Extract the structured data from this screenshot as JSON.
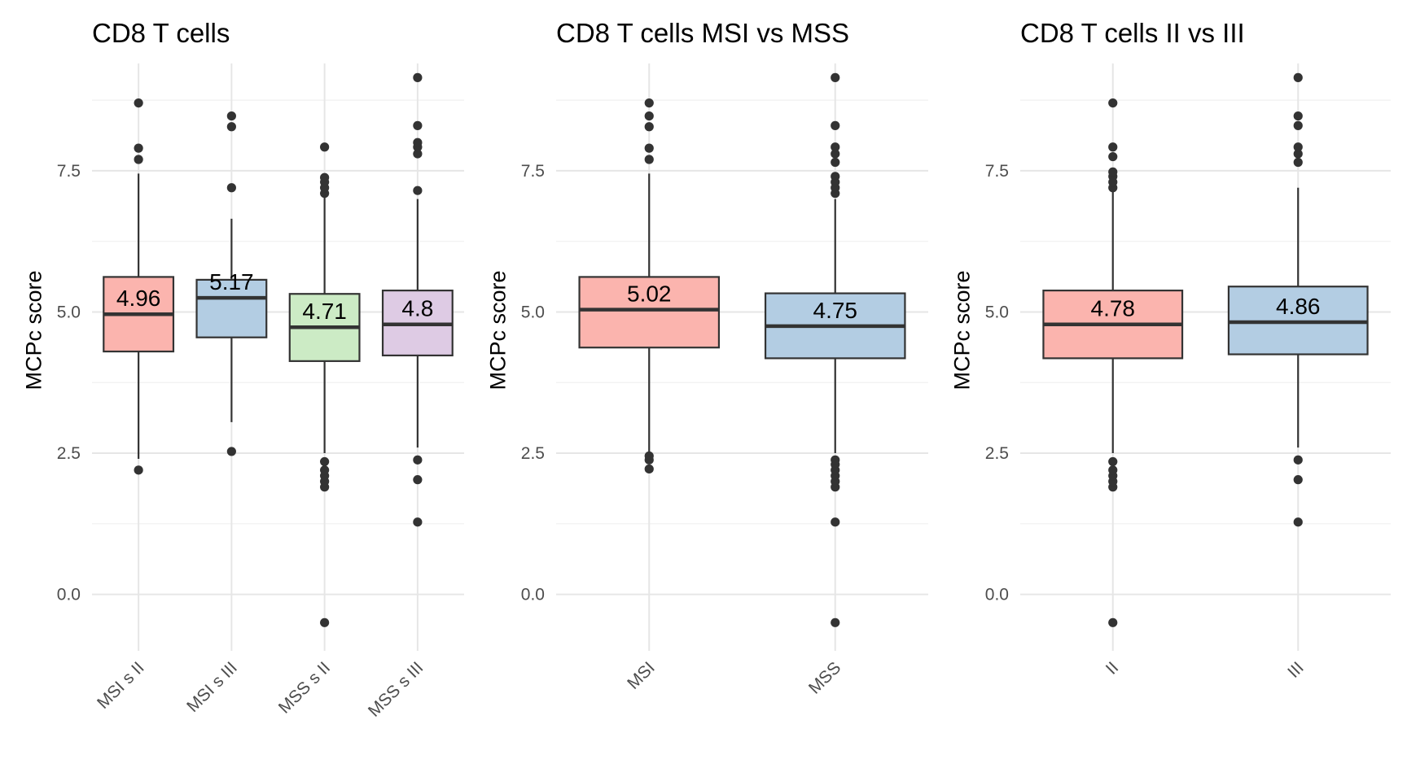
{
  "chart_data": [
    {
      "type": "box",
      "title": "CD8 T cells",
      "xlabel": "",
      "ylabel": "MCPc score",
      "ylim": [
        -1.0,
        9.4
      ],
      "yticks": [
        "0.0",
        "2.5",
        "5.0",
        "7.5"
      ],
      "ytick_values": [
        0,
        2.5,
        5.0,
        7.5
      ],
      "grid": true,
      "legend": "none",
      "categories": [
        "MSI s II",
        "MSI s III",
        "MSS s II",
        "MSS s III"
      ],
      "colors": [
        "#fbb4ae",
        "#b3cde3",
        "#ccebc5",
        "#decbe4"
      ],
      "boxes": [
        {
          "q1": 4.3,
          "median": 4.96,
          "q3": 5.62,
          "whisker_low": 2.4,
          "whisker_high": 7.45,
          "outliers": [
            2.2,
            7.7,
            7.9,
            8.7
          ],
          "label": "4.96"
        },
        {
          "q1": 4.55,
          "median": 5.25,
          "q3": 5.57,
          "whisker_low": 3.05,
          "whisker_high": 6.65,
          "outliers": [
            2.53,
            7.2,
            8.28,
            8.47
          ],
          "label": "5.17"
        },
        {
          "q1": 4.13,
          "median": 4.73,
          "q3": 5.32,
          "whisker_low": 2.5,
          "whisker_high": 7.15,
          "outliers": [
            -0.5,
            1.9,
            2.0,
            2.1,
            2.2,
            2.35,
            7.1,
            7.2,
            7.3,
            7.38,
            7.92
          ],
          "label": "4.71"
        },
        {
          "q1": 4.23,
          "median": 4.78,
          "q3": 5.38,
          "whisker_low": 2.6,
          "whisker_high": 7.0,
          "outliers": [
            1.28,
            2.03,
            2.38,
            7.15,
            7.8,
            7.92,
            8.0,
            8.3,
            9.15
          ],
          "label": "4.8"
        }
      ]
    },
    {
      "type": "box",
      "title": "CD8 T cells MSI vs MSS",
      "xlabel": "",
      "ylabel": "MCPc score",
      "ylim": [
        -1.0,
        9.4
      ],
      "yticks": [
        "0.0",
        "2.5",
        "5.0",
        "7.5"
      ],
      "ytick_values": [
        0,
        2.5,
        5.0,
        7.5
      ],
      "grid": true,
      "legend": "none",
      "categories": [
        "MSI",
        "MSS"
      ],
      "colors": [
        "#fbb4ae",
        "#b3cde3"
      ],
      "boxes": [
        {
          "q1": 4.37,
          "median": 5.04,
          "q3": 5.62,
          "whisker_low": 2.5,
          "whisker_high": 7.45,
          "outliers": [
            2.22,
            2.38,
            2.45,
            7.7,
            7.9,
            8.28,
            8.47,
            8.7
          ],
          "label": "5.02"
        },
        {
          "q1": 4.18,
          "median": 4.75,
          "q3": 5.33,
          "whisker_low": 2.5,
          "whisker_high": 7.0,
          "outliers": [
            -0.5,
            1.28,
            1.9,
            2.0,
            2.1,
            2.2,
            2.3,
            2.38,
            7.1,
            7.2,
            7.3,
            7.4,
            7.65,
            7.8,
            7.92,
            8.3,
            9.15
          ],
          "label": "4.75"
        }
      ]
    },
    {
      "type": "box",
      "title": "CD8 T cells II vs III",
      "xlabel": "",
      "ylabel": "MCPc score",
      "ylim": [
        -1.0,
        9.4
      ],
      "yticks": [
        "0.0",
        "2.5",
        "5.0",
        "7.5"
      ],
      "ytick_values": [
        0,
        2.5,
        5.0,
        7.5
      ],
      "grid": true,
      "legend": "none",
      "categories": [
        "II",
        "III"
      ],
      "colors": [
        "#fbb4ae",
        "#b3cde3"
      ],
      "boxes": [
        {
          "q1": 4.18,
          "median": 4.78,
          "q3": 5.38,
          "whisker_low": 2.5,
          "whisker_high": 7.15,
          "outliers": [
            -0.5,
            1.9,
            2.0,
            2.1,
            2.2,
            2.35,
            7.2,
            7.3,
            7.4,
            7.48,
            7.75,
            7.92,
            8.7
          ],
          "label": "4.78"
        },
        {
          "q1": 4.25,
          "median": 4.82,
          "q3": 5.45,
          "whisker_low": 2.6,
          "whisker_high": 7.2,
          "outliers": [
            1.28,
            2.03,
            2.38,
            7.65,
            7.8,
            7.92,
            8.3,
            8.47,
            9.15
          ],
          "label": "4.86"
        }
      ]
    }
  ]
}
